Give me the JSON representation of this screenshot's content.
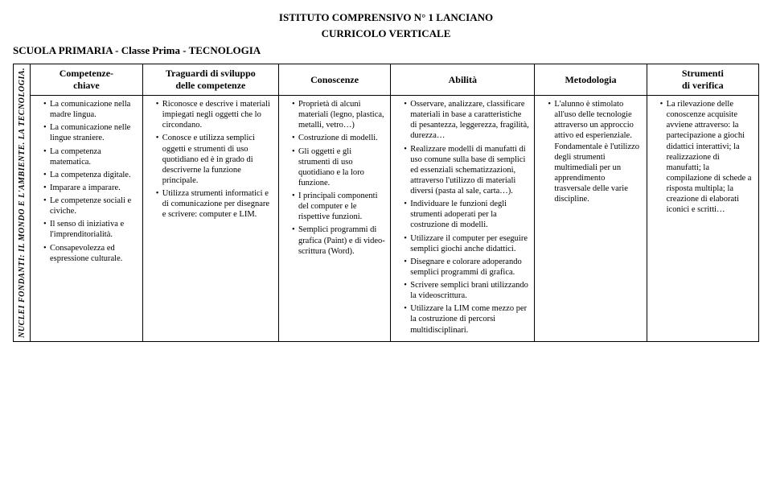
{
  "header": {
    "institute": "ISTITUTO  COMPRENSIVO  N° 1  LANCIANO",
    "curriculum": "CURRICOLO  VERTICALE",
    "class_line": "SCUOLA  PRIMARIA   -   Classe Prima   -   TECNOLOGIA"
  },
  "vertical_label": "NUCLEI  FONDANTI:    IL  MONDO  E  L'AMBIENTE.   LA  TECNOLOGIA.",
  "columns": [
    "Competenze-\nchiave",
    "Traguardi di sviluppo delle competenze",
    "Conoscenze",
    "Abilità",
    "Metodologia",
    "Strumenti di verifica"
  ],
  "cells": {
    "competenze": [
      "La comunicazione nella madre lingua.",
      "La comunicazione nelle lingue straniere.",
      "La competenza matematica.",
      "La competenza digitale.",
      "Imparare a imparare.",
      "Le competenze sociali e civiche.",
      "Il senso di iniziativa e l'imprenditorialità.",
      "Consapevolezza ed espressione culturale."
    ],
    "traguardi": [
      "Riconosce e descrive i materiali impiegati negli oggetti che lo circondano.",
      "Conosce e utilizza semplici oggetti e strumenti di uso quotidiano ed è in grado di descriverne la funzione principale.",
      "Utilizza strumenti informatici e di comunicazione per disegnare e scrivere: computer e LIM."
    ],
    "conoscenze": [
      "Proprietà di alcuni materiali (legno, plastica, metalli, vetro…)",
      "Costruzione di modelli.",
      "Gli oggetti e gli strumenti di uso quotidiano e la loro funzione.",
      "I principali componenti del computer e le rispettive funzioni.",
      "Semplici programmi di grafica (Paint) e di video-scrittura (Word)."
    ],
    "abilita": [
      "Osservare, analizzare, classificare materiali in base a caratteristiche di pesantezza, leggerezza, fragilità,         durezza…",
      "Realizzare modelli di manufatti di uso comune sulla  base di semplici ed essenziali schematizzazioni, attraverso  l'utilizzo di materiali diversi (pasta al sale, carta…).",
      "Individuare le funzioni degli strumenti adoperati per la costruzione di modelli.",
      "Utilizzare il computer  per eseguire semplici giochi anche didattici.",
      "Disegnare e colorare adoperando semplici programmi di grafica.",
      "Scrivere semplici brani utilizzando la videoscrittura.",
      "Utilizzare la LIM come mezzo per la costruzione di percorsi multidisciplinari."
    ],
    "metodologia": [
      "L'alunno è stimolato all'uso delle tecnologie attraverso un approccio attivo ed esperienziale. Fondamentale è l'utilizzo degli strumenti multimediali per un apprendimento trasversale delle varie discipline."
    ],
    "strumenti": [
      "La rilevazione  delle conoscenze acquisite avviene attraverso: la partecipazione a giochi didattici interattivi; la realizzazione di manufatti; la compilazione di schede a risposta multipla; la creazione di    elaborati iconici e scritti…"
    ]
  }
}
